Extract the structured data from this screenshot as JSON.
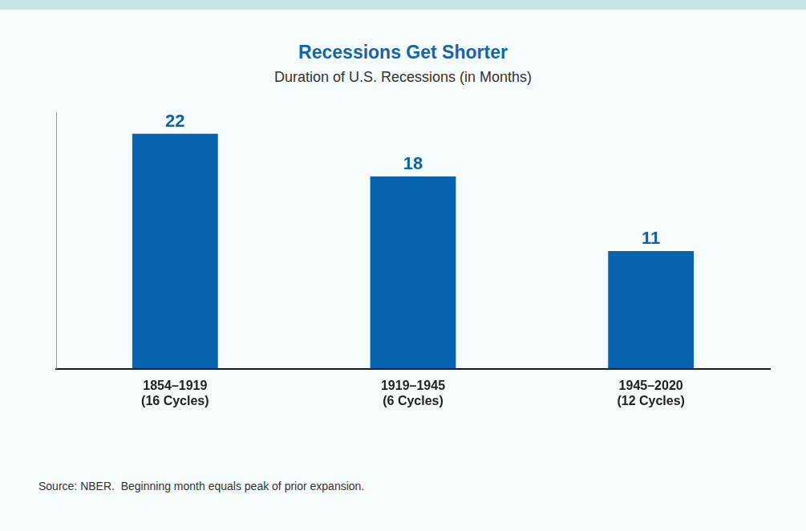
{
  "chart_data": {
    "type": "bar",
    "title": "Recessions Get Shorter",
    "subtitle": "Duration of U.S. Recessions (in Months)",
    "categories": [
      [
        "1854–1919",
        "(16 Cycles)"
      ],
      [
        "1919–1945",
        "(6 Cycles)"
      ],
      [
        "1945–2020",
        "(12 Cycles)"
      ]
    ],
    "values": [
      22,
      18,
      11
    ],
    "color": "#0863b0",
    "ylim": [
      0,
      24
    ],
    "yticks": [
      0
    ],
    "grid": false,
    "data_labels": true,
    "tick_labels": "x",
    "source": "Source: NBER.  Beginning month equals peak of prior expansion."
  }
}
